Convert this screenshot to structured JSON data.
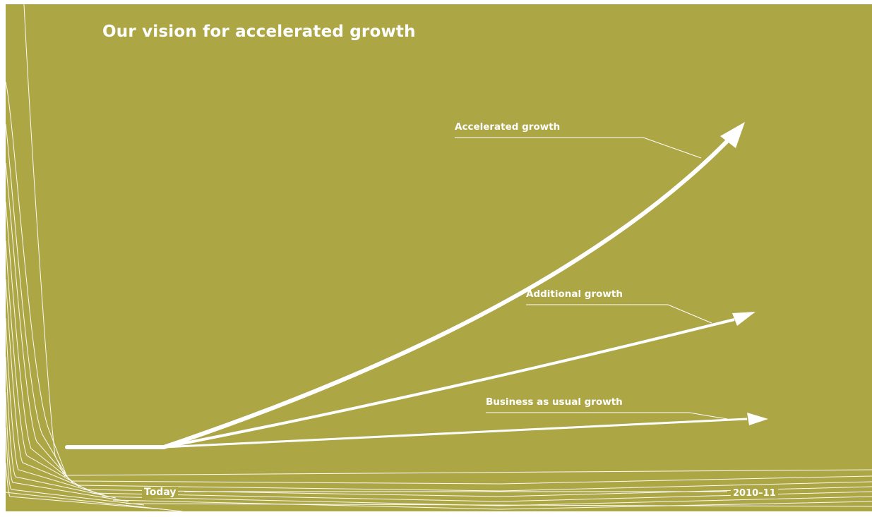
{
  "title": "Our vision for accelerated growth",
  "colors": {
    "background": "#ada645",
    "foreground": "#ffffff"
  },
  "curves": [
    {
      "label": "Accelerated growth"
    },
    {
      "label": "Additional growth"
    },
    {
      "label": "Business as usual growth"
    }
  ],
  "axis": {
    "start_label": "Today",
    "end_label": "2010–11"
  }
}
